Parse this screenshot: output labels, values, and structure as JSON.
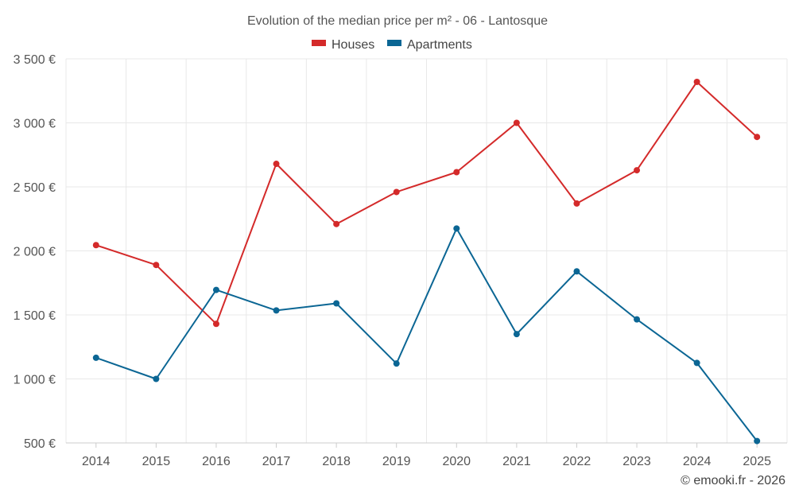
{
  "chart_data": {
    "type": "line",
    "title": "Evolution of the median price per m² - 06 - Lantosque",
    "x": [
      "2014",
      "2015",
      "2016",
      "2017",
      "2018",
      "2019",
      "2020",
      "2021",
      "2022",
      "2023",
      "2024",
      "2025"
    ],
    "series": [
      {
        "name": "Houses",
        "color": "#d42a2a",
        "values": [
          2045,
          1890,
          1430,
          2680,
          2210,
          2460,
          2615,
          3000,
          2370,
          2630,
          3320,
          2890
        ]
      },
      {
        "name": "Apartments",
        "color": "#0b6694",
        "values": [
          1165,
          1000,
          1695,
          1535,
          1590,
          1120,
          2175,
          1350,
          1840,
          1465,
          1125,
          515
        ]
      }
    ],
    "ylim": [
      500,
      3500
    ],
    "yticks": [
      500,
      1000,
      1500,
      2000,
      2500,
      3000,
      3500
    ],
    "ytick_labels": [
      "500 €",
      "1 000 €",
      "1 500 €",
      "2 000 €",
      "2 500 €",
      "3 000 €",
      "3 500 €"
    ],
    "xlabel": "",
    "ylabel": "",
    "grid": true,
    "legend_position": "top-center"
  },
  "credit": "© emooki.fr - 2026"
}
